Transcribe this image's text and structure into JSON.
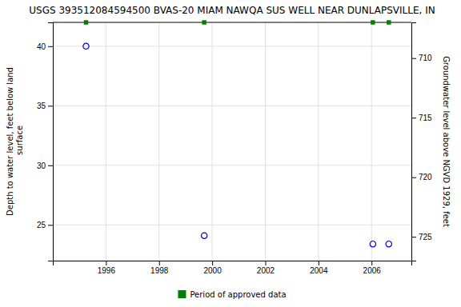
{
  "chart_data": {
    "type": "scatter",
    "title": "USGS 393512084594500 BVAS-20 MIAM NAWQA SUS WELL NEAR DUNLAPSVILLE, IN",
    "y_label": "Depth to water level, feet below land\n surface",
    "y2_label": "Groundwater level above NGVD 1929, feet",
    "x": [
      1995.25,
      1999.7,
      2006.05,
      2006.65
    ],
    "series": [
      {
        "color": "#0000cc",
        "marker": "circle",
        "values": [
          40.0,
          24.1,
          23.4,
          23.4
        ]
      },
      {
        "name": "Period of approved data",
        "color": "#008000",
        "marker": "square",
        "values": [
          42,
          42,
          42,
          42
        ]
      }
    ],
    "xlim": [
      1994.0,
      2007.5
    ],
    "xticks": [
      1996,
      1998,
      2000,
      2002,
      2004,
      2006
    ],
    "ylim": [
      22,
      42
    ],
    "yticks": [
      25,
      30,
      35,
      40
    ],
    "y2lim": [
      727,
      707
    ],
    "y2ticks": [
      725,
      720,
      715,
      710
    ],
    "grid": true,
    "legend": "bottom"
  }
}
